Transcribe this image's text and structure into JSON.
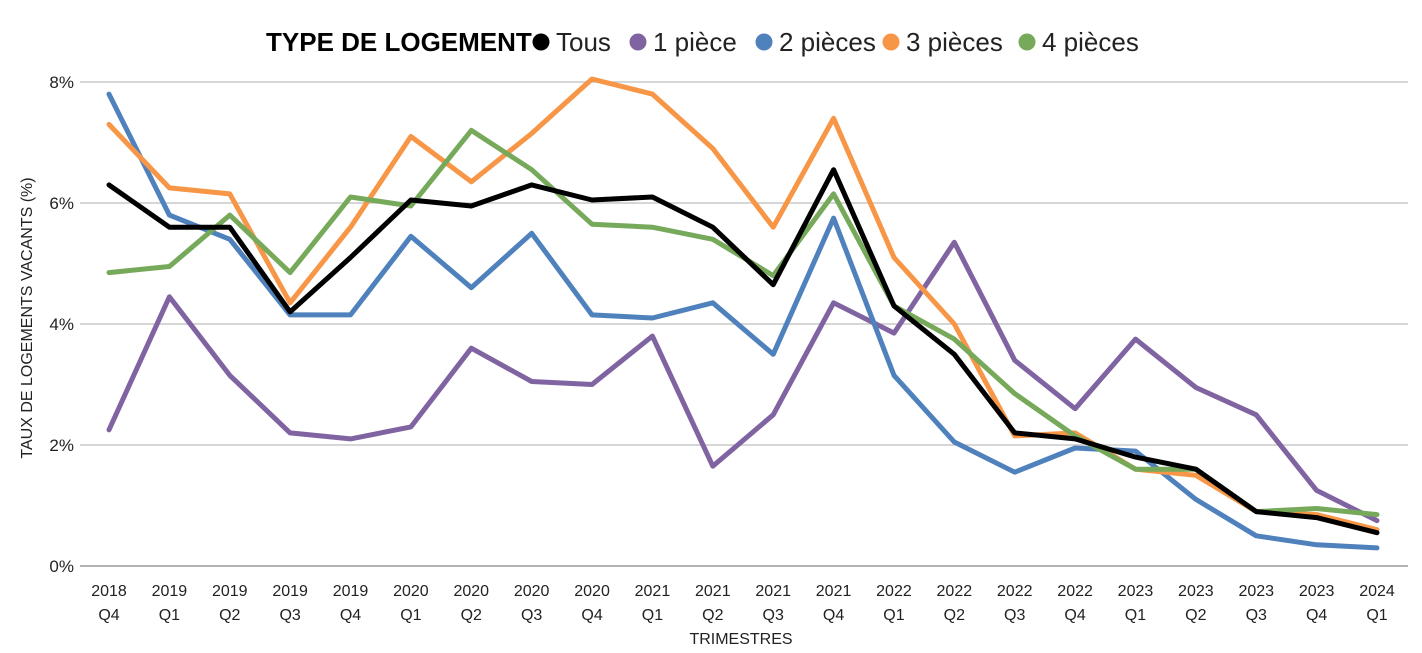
{
  "chart_data": {
    "type": "line",
    "legend_title": "TYPE DE LOGEMENT",
    "legend_position": "top",
    "xlabel": "TRIMESTRES",
    "ylabel": "TAUX DE LOGEMENTS VACANTS (%)",
    "ylim": [
      0,
      8
    ],
    "y_ticks": [
      "0%",
      "2%",
      "4%",
      "6%",
      "8%"
    ],
    "grid": true,
    "categories": [
      {
        "year": "2018",
        "q": "Q4"
      },
      {
        "year": "2019",
        "q": "Q1"
      },
      {
        "year": "2019",
        "q": "Q2"
      },
      {
        "year": "2019",
        "q": "Q3"
      },
      {
        "year": "2019",
        "q": "Q4"
      },
      {
        "year": "2020",
        "q": "Q1"
      },
      {
        "year": "2020",
        "q": "Q2"
      },
      {
        "year": "2020",
        "q": "Q3"
      },
      {
        "year": "2020",
        "q": "Q4"
      },
      {
        "year": "2021",
        "q": "Q1"
      },
      {
        "year": "2021",
        "q": "Q2"
      },
      {
        "year": "2021",
        "q": "Q3"
      },
      {
        "year": "2021",
        "q": "Q4"
      },
      {
        "year": "2022",
        "q": "Q1"
      },
      {
        "year": "2022",
        "q": "Q2"
      },
      {
        "year": "2022",
        "q": "Q3"
      },
      {
        "year": "2022",
        "q": "Q4"
      },
      {
        "year": "2023",
        "q": "Q1"
      },
      {
        "year": "2023",
        "q": "Q2"
      },
      {
        "year": "2023",
        "q": "Q3"
      },
      {
        "year": "2023",
        "q": "Q4"
      },
      {
        "year": "2024",
        "q": "Q1"
      }
    ],
    "series": [
      {
        "name": "Tous",
        "color": "#000000",
        "values": [
          6.3,
          5.6,
          5.6,
          4.2,
          5.1,
          6.05,
          5.95,
          6.3,
          6.05,
          6.1,
          5.6,
          4.65,
          6.55,
          4.3,
          3.5,
          2.2,
          2.1,
          1.8,
          1.6,
          0.9,
          0.8,
          0.55
        ]
      },
      {
        "name": "1 pièce",
        "color": "#8064a2",
        "values": [
          2.25,
          4.45,
          3.15,
          2.2,
          2.1,
          2.3,
          3.6,
          3.05,
          3.0,
          3.8,
          1.65,
          2.5,
          4.35,
          3.85,
          5.35,
          3.4,
          2.6,
          3.75,
          2.95,
          2.5,
          1.25,
          0.75
        ]
      },
      {
        "name": "2 pièces",
        "color": "#4f81bd",
        "values": [
          7.8,
          5.8,
          5.4,
          4.15,
          4.15,
          5.45,
          4.6,
          5.5,
          4.15,
          4.1,
          4.35,
          3.5,
          5.75,
          3.15,
          2.05,
          1.55,
          1.95,
          1.9,
          1.1,
          0.5,
          0.35,
          0.3
        ]
      },
      {
        "name": "3 pièces",
        "color": "#f79646",
        "values": [
          7.3,
          6.25,
          6.15,
          4.35,
          5.6,
          7.1,
          6.35,
          7.15,
          8.05,
          7.8,
          6.9,
          5.6,
          7.4,
          5.1,
          4.0,
          2.15,
          2.2,
          1.6,
          1.5,
          0.9,
          0.85,
          0.6
        ]
      },
      {
        "name": "4 pièces",
        "color": "#77a95b",
        "values": [
          4.85,
          4.95,
          5.8,
          4.85,
          6.1,
          5.95,
          7.2,
          6.55,
          5.65,
          5.6,
          5.4,
          4.8,
          6.15,
          4.3,
          3.75,
          2.85,
          2.15,
          1.6,
          1.6,
          0.9,
          0.95,
          0.85
        ]
      }
    ]
  }
}
